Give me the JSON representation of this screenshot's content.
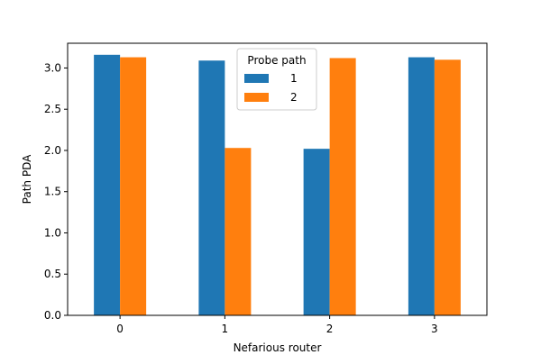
{
  "chart_data": {
    "type": "bar",
    "title": "",
    "xlabel": "Nefarious router",
    "ylabel": "Path PDA",
    "categories": [
      "0",
      "1",
      "2",
      "3"
    ],
    "ylim": [
      0,
      3.3
    ],
    "yticks": [
      "0.0",
      "0.5",
      "1.0",
      "1.5",
      "2.0",
      "2.5",
      "3.0"
    ],
    "grid": false,
    "legend": {
      "title": "Probe path",
      "placement": "top-center"
    },
    "series": [
      {
        "name": "1",
        "color": "#1f77b4",
        "values": [
          3.16,
          3.09,
          2.02,
          3.13
        ]
      },
      {
        "name": "2",
        "color": "#ff7f0e",
        "values": [
          3.13,
          2.03,
          3.12,
          3.1
        ]
      }
    ]
  }
}
